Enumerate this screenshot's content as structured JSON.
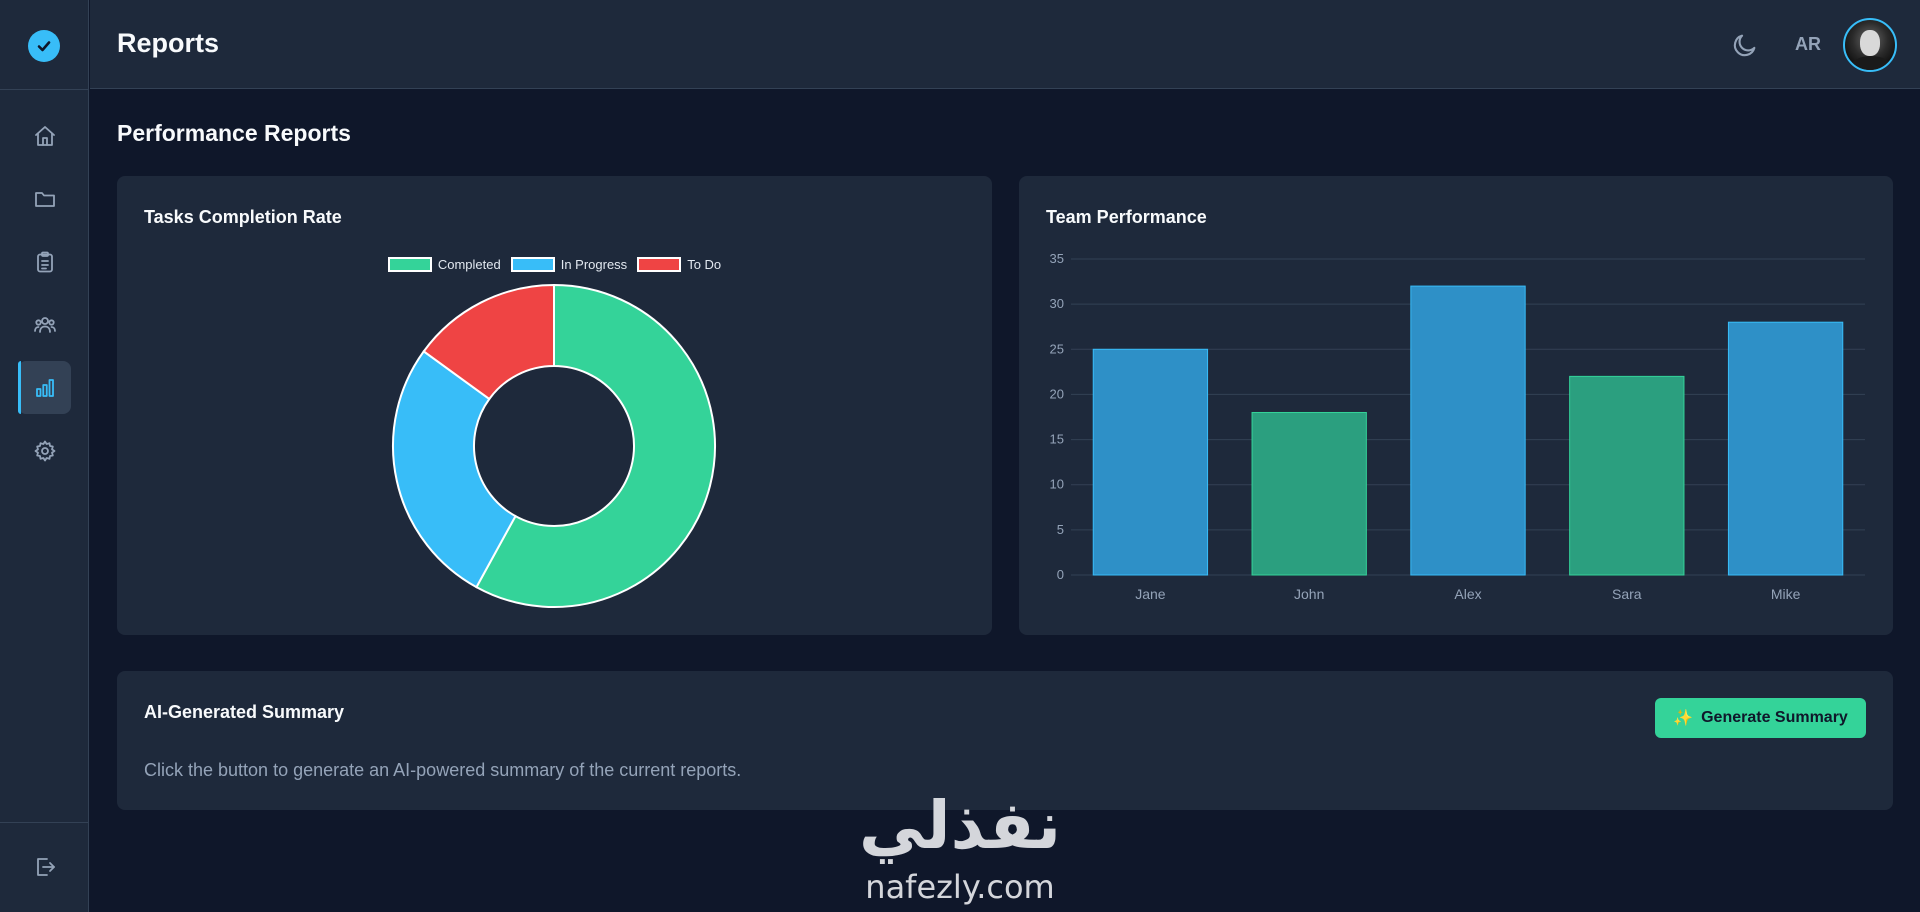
{
  "header": {
    "title": "Reports",
    "lang": "AR"
  },
  "sidebar": {
    "items": [
      {
        "name": "home",
        "icon": "home-icon"
      },
      {
        "name": "projects",
        "icon": "folder-icon"
      },
      {
        "name": "tasks",
        "icon": "clipboard-icon"
      },
      {
        "name": "team",
        "icon": "users-icon"
      },
      {
        "name": "reports",
        "icon": "bar-chart-icon",
        "active": true
      },
      {
        "name": "settings",
        "icon": "gear-icon"
      }
    ],
    "logout_icon": "logout-icon"
  },
  "page": {
    "title": "Performance Reports"
  },
  "donut_card": {
    "title": "Tasks Completion Rate",
    "legend": [
      {
        "label": "Completed",
        "color": "#34d399"
      },
      {
        "label": "In Progress",
        "color": "#38bdf8"
      },
      {
        "label": "To Do",
        "color": "#ef4444"
      }
    ]
  },
  "bar_card": {
    "title": "Team Performance"
  },
  "summary": {
    "title": "AI-Generated Summary",
    "button_label": "Generate Summary",
    "button_icon": "✨",
    "text": "Click the button to generate an AI-powered summary of the current reports."
  },
  "watermark": {
    "arabic": "نفذلي",
    "latin": "nafezly.com"
  },
  "chart_data": [
    {
      "type": "pie",
      "title": "Tasks Completion Rate",
      "categories": [
        "Completed",
        "In Progress",
        "To Do"
      ],
      "values": [
        58,
        27,
        15
      ],
      "colors": [
        "#34d399",
        "#38bdf8",
        "#ef4444"
      ],
      "legend": "top"
    },
    {
      "type": "bar",
      "title": "Team Performance",
      "categories": [
        "Jane",
        "John",
        "Alex",
        "Sara",
        "Mike"
      ],
      "values": [
        25,
        18,
        32,
        22,
        28
      ],
      "colors": [
        "#2e90c7",
        "#2b9f7f",
        "#2e90c7",
        "#2b9f7f",
        "#2e90c7"
      ],
      "ylim": [
        0,
        35
      ],
      "yticks": [
        0,
        5,
        10,
        15,
        20,
        25,
        30,
        35
      ],
      "grid": true
    }
  ]
}
